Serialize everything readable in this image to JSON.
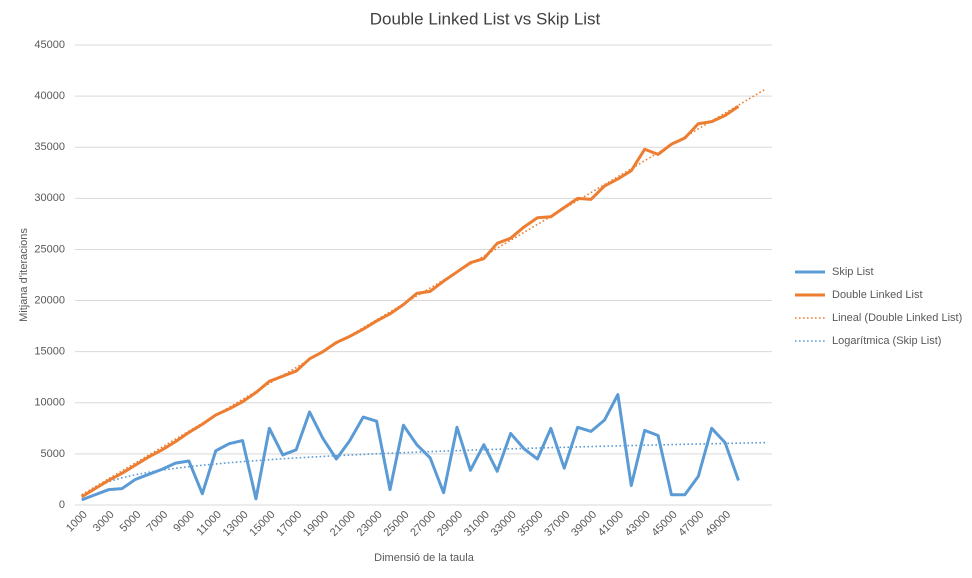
{
  "chart_data": {
    "type": "line",
    "title": "Double Linked List vs Skip List",
    "x_label": "Dimensió de la taula",
    "y_label": "Mitjana d'iteracions",
    "categories": [
      1000,
      null,
      3000,
      null,
      5000,
      null,
      7000,
      null,
      9000,
      null,
      11000,
      null,
      13000,
      null,
      15000,
      null,
      17000,
      null,
      19000,
      null,
      21000,
      null,
      23000,
      null,
      25000,
      null,
      27000,
      null,
      29000,
      null,
      31000,
      null,
      33000,
      null,
      35000,
      null,
      37000,
      null,
      39000,
      null,
      41000,
      null,
      43000,
      null,
      45000,
      null,
      47000,
      null,
      49000,
      null,
      null,
      null
    ],
    "ylim": [
      0,
      45000
    ],
    "yticks": [
      0,
      5000,
      10000,
      15000,
      20000,
      25000,
      30000,
      35000,
      40000,
      45000
    ],
    "grid": true,
    "legend": "right",
    "series": [
      {
        "name": "Skip List",
        "color": "#5b9bd5",
        "style": "solid",
        "values": [
          500,
          1000,
          1500,
          1600,
          2500,
          3000,
          3500,
          4100,
          4300,
          1100,
          5300,
          6000,
          6300,
          600,
          7500,
          4900,
          5400,
          9100,
          6500,
          4500,
          6300,
          8600,
          8200,
          1500,
          7800,
          5900,
          4600,
          1200,
          7600,
          3400,
          5900,
          3300,
          7000,
          5500,
          4500,
          7500,
          3600,
          7600,
          7200,
          8300,
          10800,
          1900,
          7300,
          6800,
          1000,
          1000,
          2800,
          7500,
          6100,
          2400,
          null,
          null
        ]
      },
      {
        "name": "Double Linked List",
        "color": "#ed7d31",
        "style": "solid",
        "values": [
          800,
          1600,
          2400,
          3100,
          3900,
          4700,
          5400,
          6200,
          7100,
          7900,
          8800,
          9400,
          10100,
          11000,
          12100,
          12600,
          13100,
          14300,
          15000,
          15900,
          16500,
          17200,
          18000,
          18700,
          19600,
          20700,
          20900,
          21900,
          22800,
          23700,
          24100,
          25600,
          26100,
          27200,
          28100,
          28200,
          29100,
          30000,
          29900,
          31200,
          31900,
          32700,
          34800,
          34300,
          35300,
          35900,
          37300,
          37500,
          38100,
          39000,
          null,
          null
        ]
      },
      {
        "name": "Lineal (Double Linked List)",
        "color": "#ed7d31",
        "style": "dotted",
        "values": [
          1000,
          1780,
          2560,
          3330,
          4110,
          4890,
          5670,
          6450,
          7220,
          8000,
          8780,
          9560,
          10340,
          11110,
          11890,
          12670,
          13450,
          14230,
          15000,
          15780,
          16560,
          17340,
          18120,
          18890,
          19670,
          20450,
          21230,
          22010,
          22780,
          23560,
          24340,
          25120,
          25900,
          26670,
          27450,
          28230,
          29010,
          29790,
          30560,
          31340,
          32120,
          32900,
          33680,
          34450,
          35230,
          36010,
          36790,
          37570,
          38340,
          39120,
          39900,
          40680
        ]
      },
      {
        "name": "Logarítmica (Skip List)",
        "color": "#5b9bd5",
        "style": "dotted",
        "values": [
          800,
          1730,
          2275,
          2660,
          2959,
          3205,
          3411,
          3590,
          3748,
          3890,
          4018,
          4135,
          4242,
          4342,
          4434,
          4521,
          4602,
          4678,
          4751,
          4821,
          4886,
          4948,
          5007,
          5065,
          5120,
          5172,
          5223,
          5272,
          5318,
          5364,
          5408,
          5451,
          5493,
          5532,
          5571,
          5610,
          5646,
          5682,
          5717,
          5751,
          5784,
          5816,
          5847,
          5878,
          5909,
          5938,
          5967,
          5995,
          6023,
          6050,
          6077,
          6102
        ]
      }
    ]
  }
}
